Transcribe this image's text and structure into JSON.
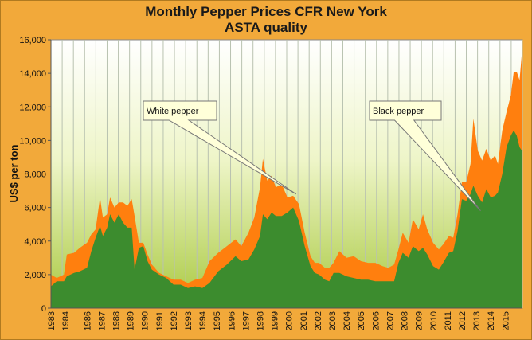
{
  "chart_data": {
    "type": "area",
    "title": "Monthly Pepper Prices CFR New York",
    "subtitle": "ASTA quality",
    "ylabel": "US$ per ton",
    "xlabel": "",
    "ylim": [
      0,
      16000
    ],
    "yticks": [
      0,
      2000,
      4000,
      6000,
      8000,
      10000,
      12000,
      14000,
      16000
    ],
    "ytick_labels": [
      "0",
      "2,000",
      "4,000",
      "6,000",
      "8,000",
      "10,000",
      "12,000",
      "14,000",
      "16,000"
    ],
    "xlim": [
      1983,
      2015.7
    ],
    "xtick_labels": [
      "1983",
      "1984",
      "1986",
      "1987",
      "1988",
      "1989",
      "1990",
      "1991",
      "1992",
      "1993",
      "1994",
      "1995",
      "1996",
      "1997",
      "1998",
      "1999",
      "2000",
      "2001",
      "2002",
      "2003",
      "2004",
      "2005",
      "2006",
      "2007",
      "2008",
      "2009",
      "2010",
      "2011",
      "2012",
      "2013",
      "2014",
      "2015"
    ],
    "xtick_positions": [
      1983,
      1984,
      1985.5,
      1986.5,
      1987.5,
      1988.5,
      1989.5,
      1990.5,
      1991.5,
      1992.5,
      1993.5,
      1994.5,
      1995.5,
      1996.5,
      1997.5,
      1998.5,
      1999.5,
      2000.5,
      2001.5,
      2002.5,
      2003.5,
      2004.5,
      2005.5,
      2006.5,
      2007.5,
      2008.5,
      2009.5,
      2010.5,
      2011.5,
      2012.5,
      2013.5,
      2014.5
    ],
    "grid": "vertical",
    "series": [
      {
        "name": "White pepper",
        "color": "#FF7F0E",
        "points": [
          [
            1983.0,
            2000
          ],
          [
            1983.4,
            1800
          ],
          [
            1983.9,
            2000
          ],
          [
            1984.1,
            3200
          ],
          [
            1984.6,
            3300
          ],
          [
            1985.0,
            3600
          ],
          [
            1985.5,
            3900
          ],
          [
            1985.8,
            4400
          ],
          [
            1986.1,
            4700
          ],
          [
            1986.4,
            6600
          ],
          [
            1986.6,
            5400
          ],
          [
            1986.9,
            5600
          ],
          [
            1987.1,
            6600
          ],
          [
            1987.4,
            6000
          ],
          [
            1987.7,
            6300
          ],
          [
            1988.0,
            6300
          ],
          [
            1988.3,
            6100
          ],
          [
            1988.6,
            6500
          ],
          [
            1988.8,
            5500
          ],
          [
            1989.1,
            3900
          ],
          [
            1989.4,
            3900
          ],
          [
            1989.7,
            3200
          ],
          [
            1990.0,
            2600
          ],
          [
            1990.5,
            2100
          ],
          [
            1991.0,
            1900
          ],
          [
            1991.5,
            1700
          ],
          [
            1992.0,
            1700
          ],
          [
            1992.5,
            1500
          ],
          [
            1993.0,
            1700
          ],
          [
            1993.5,
            1800
          ],
          [
            1994.0,
            2800
          ],
          [
            1994.6,
            3300
          ],
          [
            1995.2,
            3700
          ],
          [
            1995.8,
            4100
          ],
          [
            1996.2,
            3700
          ],
          [
            1996.7,
            4500
          ],
          [
            1997.1,
            5400
          ],
          [
            1997.5,
            7200
          ],
          [
            1997.7,
            8900
          ],
          [
            1998.0,
            7600
          ],
          [
            1998.3,
            7900
          ],
          [
            1998.6,
            7200
          ],
          [
            1999.0,
            7400
          ],
          [
            1999.4,
            6600
          ],
          [
            1999.8,
            6700
          ],
          [
            2000.2,
            6200
          ],
          [
            2000.6,
            4500
          ],
          [
            2001.0,
            3100
          ],
          [
            2001.3,
            2700
          ],
          [
            2001.6,
            2700
          ],
          [
            2002.0,
            2400
          ],
          [
            2002.3,
            2400
          ],
          [
            2002.6,
            2700
          ],
          [
            2003.0,
            3400
          ],
          [
            2003.5,
            3000
          ],
          [
            2004.0,
            3100
          ],
          [
            2004.5,
            2800
          ],
          [
            2005.0,
            2700
          ],
          [
            2005.5,
            2700
          ],
          [
            2006.0,
            2500
          ],
          [
            2006.4,
            2400
          ],
          [
            2006.8,
            2600
          ],
          [
            2007.1,
            3500
          ],
          [
            2007.4,
            4500
          ],
          [
            2007.8,
            3900
          ],
          [
            2008.1,
            5300
          ],
          [
            2008.5,
            4700
          ],
          [
            2008.8,
            5600
          ],
          [
            2009.1,
            4700
          ],
          [
            2009.5,
            3900
          ],
          [
            2009.9,
            3500
          ],
          [
            2010.2,
            3800
          ],
          [
            2010.6,
            4300
          ],
          [
            2010.9,
            4200
          ],
          [
            2011.2,
            5600
          ],
          [
            2011.5,
            7500
          ],
          [
            2011.8,
            7500
          ],
          [
            2012.1,
            8600
          ],
          [
            2012.3,
            11300
          ],
          [
            2012.6,
            9400
          ],
          [
            2012.9,
            8800
          ],
          [
            2013.2,
            9500
          ],
          [
            2013.5,
            8800
          ],
          [
            2013.8,
            9100
          ],
          [
            2014.0,
            8600
          ],
          [
            2014.3,
            10600
          ],
          [
            2014.6,
            11700
          ],
          [
            2014.9,
            12700
          ],
          [
            2015.1,
            14100
          ],
          [
            2015.3,
            14100
          ],
          [
            2015.5,
            13600
          ],
          [
            2015.65,
            15100
          ],
          [
            2015.7,
            15100
          ]
        ]
      },
      {
        "name": "Black pepper",
        "color": "#3C8C2E",
        "points": [
          [
            1983.0,
            1300
          ],
          [
            1983.4,
            1600
          ],
          [
            1983.9,
            1600
          ],
          [
            1984.1,
            1900
          ],
          [
            1984.6,
            2100
          ],
          [
            1985.0,
            2200
          ],
          [
            1985.5,
            2400
          ],
          [
            1985.8,
            3400
          ],
          [
            1986.1,
            4200
          ],
          [
            1986.4,
            4900
          ],
          [
            1986.6,
            4300
          ],
          [
            1986.9,
            4800
          ],
          [
            1987.1,
            5600
          ],
          [
            1987.4,
            5100
          ],
          [
            1987.7,
            5600
          ],
          [
            1988.0,
            5100
          ],
          [
            1988.3,
            4800
          ],
          [
            1988.6,
            4800
          ],
          [
            1988.8,
            2300
          ],
          [
            1989.1,
            3600
          ],
          [
            1989.4,
            3700
          ],
          [
            1989.7,
            2800
          ],
          [
            1990.0,
            2300
          ],
          [
            1990.5,
            2000
          ],
          [
            1991.0,
            1800
          ],
          [
            1991.5,
            1400
          ],
          [
            1992.0,
            1400
          ],
          [
            1992.5,
            1200
          ],
          [
            1993.0,
            1300
          ],
          [
            1993.5,
            1200
          ],
          [
            1994.0,
            1500
          ],
          [
            1994.6,
            2200
          ],
          [
            1995.2,
            2600
          ],
          [
            1995.8,
            3100
          ],
          [
            1996.2,
            2800
          ],
          [
            1996.7,
            2900
          ],
          [
            1997.1,
            3500
          ],
          [
            1997.5,
            4300
          ],
          [
            1997.7,
            5600
          ],
          [
            1998.0,
            5300
          ],
          [
            1998.3,
            5700
          ],
          [
            1998.6,
            5500
          ],
          [
            1999.0,
            5500
          ],
          [
            1999.4,
            5700
          ],
          [
            1999.8,
            6000
          ],
          [
            2000.2,
            5200
          ],
          [
            2000.6,
            3700
          ],
          [
            2001.0,
            2500
          ],
          [
            2001.3,
            2100
          ],
          [
            2001.6,
            2000
          ],
          [
            2002.0,
            1700
          ],
          [
            2002.3,
            1600
          ],
          [
            2002.6,
            2100
          ],
          [
            2003.0,
            2100
          ],
          [
            2003.5,
            1900
          ],
          [
            2004.0,
            1800
          ],
          [
            2004.5,
            1700
          ],
          [
            2005.0,
            1700
          ],
          [
            2005.5,
            1600
          ],
          [
            2006.0,
            1600
          ],
          [
            2006.4,
            1600
          ],
          [
            2006.8,
            1600
          ],
          [
            2007.1,
            2700
          ],
          [
            2007.4,
            3300
          ],
          [
            2007.8,
            3000
          ],
          [
            2008.1,
            3700
          ],
          [
            2008.5,
            3400
          ],
          [
            2008.8,
            3600
          ],
          [
            2009.1,
            3200
          ],
          [
            2009.5,
            2500
          ],
          [
            2009.9,
            2300
          ],
          [
            2010.2,
            2700
          ],
          [
            2010.6,
            3300
          ],
          [
            2010.9,
            3400
          ],
          [
            2011.2,
            4600
          ],
          [
            2011.5,
            6500
          ],
          [
            2011.8,
            6400
          ],
          [
            2012.1,
            6800
          ],
          [
            2012.3,
            7300
          ],
          [
            2012.6,
            6700
          ],
          [
            2012.9,
            6300
          ],
          [
            2013.2,
            7100
          ],
          [
            2013.5,
            6600
          ],
          [
            2013.8,
            6700
          ],
          [
            2014.0,
            6900
          ],
          [
            2014.3,
            8000
          ],
          [
            2014.6,
            9600
          ],
          [
            2014.9,
            10300
          ],
          [
            2015.1,
            10600
          ],
          [
            2015.3,
            10300
          ],
          [
            2015.5,
            9600
          ],
          [
            2015.65,
            9400
          ],
          [
            2015.7,
            10900
          ]
        ]
      }
    ],
    "annotations": [
      {
        "text": "White pepper",
        "target_year": 2000.0,
        "target_value": 6800
      },
      {
        "text": "Black pepper",
        "target_year": 2012.8,
        "target_value": 5800
      }
    ]
  }
}
